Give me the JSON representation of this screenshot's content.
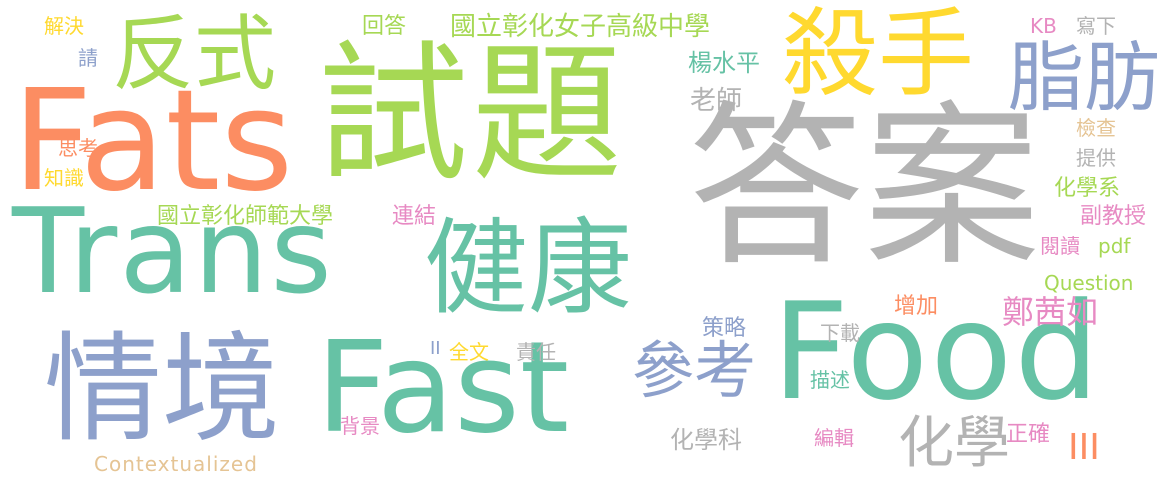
{
  "palette": {
    "green": "#66c2a5",
    "orange": "#fc8d62",
    "blue": "#8da0cb",
    "pink": "#e78ac3",
    "lime": "#a6d854",
    "yellow": "#ffd92f",
    "tan": "#e5c494",
    "gray": "#b3b3b3"
  },
  "words": [
    {
      "text": "答案",
      "color": "#b3b3b3"
    },
    {
      "text": "試題",
      "color": "#a6d854"
    },
    {
      "text": "Fats",
      "color": "#fc8d62"
    },
    {
      "text": "Trans",
      "color": "#66c2a5"
    },
    {
      "text": "Food",
      "color": "#66c2a5"
    },
    {
      "text": "Fast",
      "color": "#66c2a5"
    },
    {
      "text": "健康",
      "color": "#66c2a5"
    },
    {
      "text": "情境",
      "color": "#8da0cb"
    },
    {
      "text": "殺手",
      "color": "#ffd92f"
    },
    {
      "text": "反式",
      "color": "#a6d854"
    },
    {
      "text": "脂肪",
      "color": "#8da0cb"
    },
    {
      "text": "參考",
      "color": "#8da0cb"
    },
    {
      "text": "化學",
      "color": "#b3b3b3"
    },
    {
      "text": "國立彰化女子高級中學",
      "color": "#a6d854"
    },
    {
      "text": "國立彰化師範大學",
      "color": "#a6d854"
    },
    {
      "text": "鄭茜如",
      "color": "#e78ac3"
    },
    {
      "text": "楊水平",
      "color": "#66c2a5"
    },
    {
      "text": "老師",
      "color": "#b3b3b3"
    },
    {
      "text": "化學科",
      "color": "#b3b3b3"
    },
    {
      "text": "Contextualized",
      "color": "#e5c494"
    },
    {
      "text": "Question",
      "color": "#a6d854"
    },
    {
      "text": "pdf",
      "color": "#a6d854"
    },
    {
      "text": "KB",
      "color": "#e78ac3"
    },
    {
      "text": "寫下",
      "color": "#b3b3b3"
    },
    {
      "text": "檢查",
      "color": "#e5c494"
    },
    {
      "text": "提供",
      "color": "#b3b3b3"
    },
    {
      "text": "化學系",
      "color": "#a6d854"
    },
    {
      "text": "副教授",
      "color": "#e78ac3"
    },
    {
      "text": "閱讀",
      "color": "#e78ac3"
    },
    {
      "text": "增加",
      "color": "#fc8d62"
    },
    {
      "text": "下載",
      "color": "#b3b3b3"
    },
    {
      "text": "描述",
      "color": "#66c2a5"
    },
    {
      "text": "編輯",
      "color": "#e78ac3"
    },
    {
      "text": "正確",
      "color": "#e78ac3"
    },
    {
      "text": "策略",
      "color": "#8da0cb"
    },
    {
      "text": "責任",
      "color": "#b3b3b3"
    },
    {
      "text": "全文",
      "color": "#ffd92f"
    },
    {
      "text": "II",
      "color": "#8da0cb"
    },
    {
      "text": "III",
      "color": "#fc8d62"
    },
    {
      "text": "背景",
      "color": "#e78ac3"
    },
    {
      "text": "連結",
      "color": "#e78ac3"
    },
    {
      "text": "回答",
      "color": "#a6d854"
    },
    {
      "text": "解決",
      "color": "#ffd92f"
    },
    {
      "text": "請",
      "color": "#8da0cb"
    },
    {
      "text": "思考",
      "color": "#fc8d62"
    },
    {
      "text": "知識",
      "color": "#ffd92f"
    }
  ]
}
